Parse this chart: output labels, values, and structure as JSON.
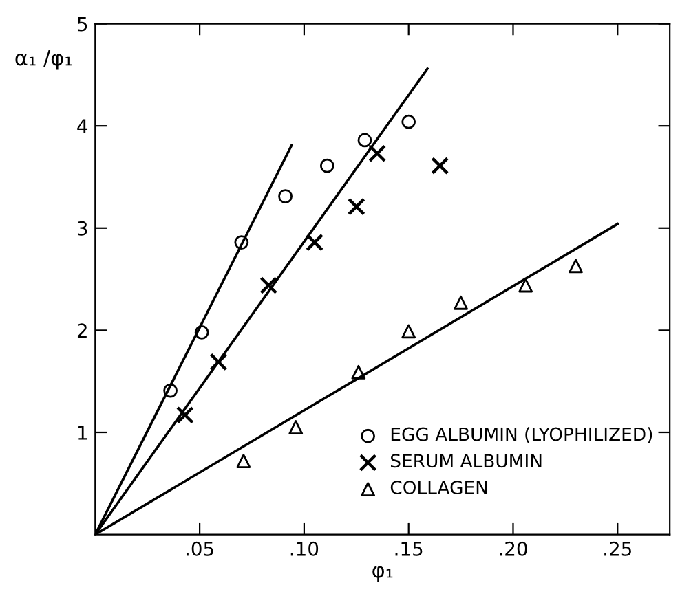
{
  "chart_data": {
    "type": "scatter",
    "xlabel": "φ₁",
    "ylabel": "α₁ /φ₁",
    "xlim": [
      0,
      0.275
    ],
    "ylim": [
      0,
      5
    ],
    "xticks": [
      {
        "value": 0.05,
        "label": ".05"
      },
      {
        "value": 0.1,
        "label": ".10"
      },
      {
        "value": 0.15,
        "label": ".15"
      },
      {
        "value": 0.2,
        "label": ".20"
      },
      {
        "value": 0.25,
        "label": ".25"
      }
    ],
    "yticks": [
      1,
      2,
      3,
      4,
      5
    ],
    "grid": false,
    "legend": "bottom right",
    "series": [
      {
        "name": "EGG ALBUMIN (LYOPHILIZED)",
        "marker": "circle",
        "color": "#000000",
        "x": [
          0.036,
          0.051,
          0.07,
          0.091,
          0.111,
          0.129,
          0.15
        ],
        "values": [
          1.41,
          1.98,
          2.86,
          3.31,
          3.61,
          3.86,
          4.04
        ]
      },
      {
        "name": "SERUM ALBUMIN",
        "marker": "cross",
        "color": "#000000",
        "x": [
          0.043,
          0.059,
          0.083,
          0.105,
          0.125,
          0.135,
          0.165
        ],
        "values": [
          1.17,
          1.69,
          2.44,
          2.86,
          3.21,
          3.73,
          3.61
        ]
      },
      {
        "name": "COLLAGEN",
        "marker": "triangle",
        "color": "#000000",
        "x": [
          0.071,
          0.096,
          0.126,
          0.15,
          0.175,
          0.206,
          0.23
        ],
        "values": [
          0.72,
          1.05,
          1.59,
          1.99,
          2.27,
          2.44,
          2.63
        ]
      },
      {
        "type": "line",
        "line_style": "solid",
        "color": "#000000",
        "x": [
          0,
          0.094
        ],
        "values": [
          0,
          3.81
        ]
      },
      {
        "type": "line",
        "line_style": "solid",
        "color": "#000000",
        "x": [
          0,
          0.159
        ],
        "values": [
          0,
          4.56
        ]
      },
      {
        "type": "line",
        "line_style": "solid",
        "color": "#000000",
        "x": [
          0,
          0.25
        ],
        "values": [
          0,
          3.04
        ]
      }
    ]
  }
}
